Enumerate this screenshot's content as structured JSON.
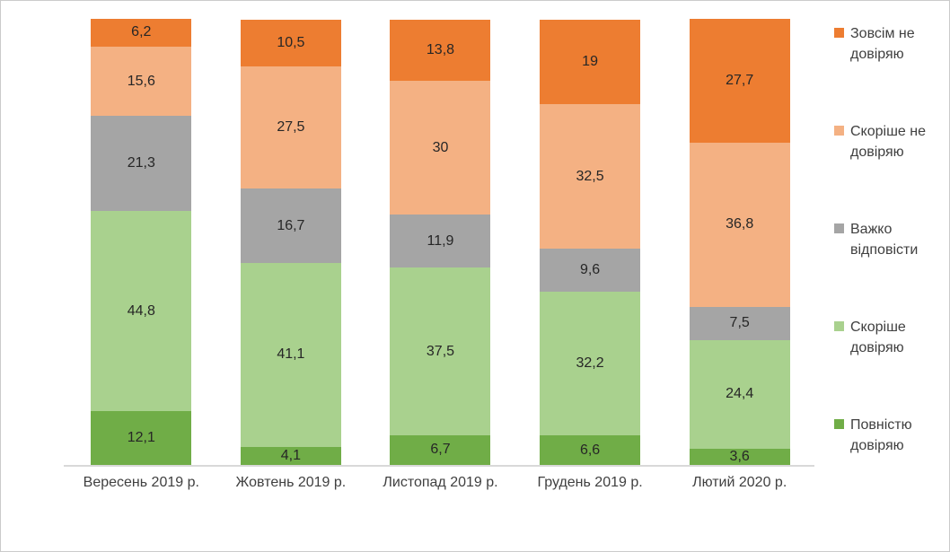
{
  "chart_data": {
    "type": "bar",
    "subtype": "stacked-column-100",
    "title": "",
    "xlabel": "",
    "ylabel": "",
    "ylim": [
      0,
      100
    ],
    "gridlines": false,
    "value_axis_visible": false,
    "decimal_separator": ",",
    "categories": [
      "Вересень 2019 р.",
      "Жовтень 2019 р.",
      "Листопад 2019 р.",
      "Грудень 2019 р.",
      "Лютий 2020 р."
    ],
    "series": [
      {
        "name": "Повністю довіряю",
        "color": "#70AD47",
        "values": [
          12.1,
          4.1,
          6.7,
          6.6,
          3.6
        ],
        "labels": [
          "12,1",
          "4,1",
          "6,7",
          "6,6",
          "3,6"
        ]
      },
      {
        "name": "Скоріше довіряю",
        "color": "#A9D18E",
        "values": [
          44.8,
          41.1,
          37.5,
          32.2,
          24.4
        ],
        "labels": [
          "44,8",
          "41,1",
          "37,5",
          "32,2",
          "24,4"
        ]
      },
      {
        "name": "Важко відповісти",
        "color": "#A5A5A5",
        "values": [
          21.3,
          16.7,
          11.9,
          9.6,
          7.5
        ],
        "labels": [
          "21,3",
          "16,7",
          "11,9",
          "9,6",
          "7,5"
        ]
      },
      {
        "name": "Скоріше  не довіряю",
        "color": "#F4B183",
        "values": [
          15.6,
          27.5,
          30,
          32.5,
          36.8
        ],
        "labels": [
          "15,6",
          "27,5",
          "30",
          "32,5",
          "36,8"
        ]
      },
      {
        "name": "Зовсім не довіряю",
        "color": "#ED7D31",
        "values": [
          6.2,
          10.5,
          13.8,
          19,
          27.7
        ],
        "labels": [
          "6,2",
          "10,5",
          "13,8",
          "19",
          "27,7"
        ]
      }
    ],
    "stack_order": "bottom-to-top",
    "legend": {
      "position": "right",
      "items_top_to_bottom": [
        "Зовсім не довіряю",
        "Скоріше  не довіряю",
        "Важко відповісти",
        "Скоріше довіряю",
        "Повністю довіряю"
      ]
    }
  },
  "colors": {
    "background": "#FFFFFF",
    "frame_border": "#CBCBCB",
    "axis_line": "#D9D9D9",
    "data_label": "#262626",
    "category_label": "#404040",
    "legend_label": "#404040"
  }
}
